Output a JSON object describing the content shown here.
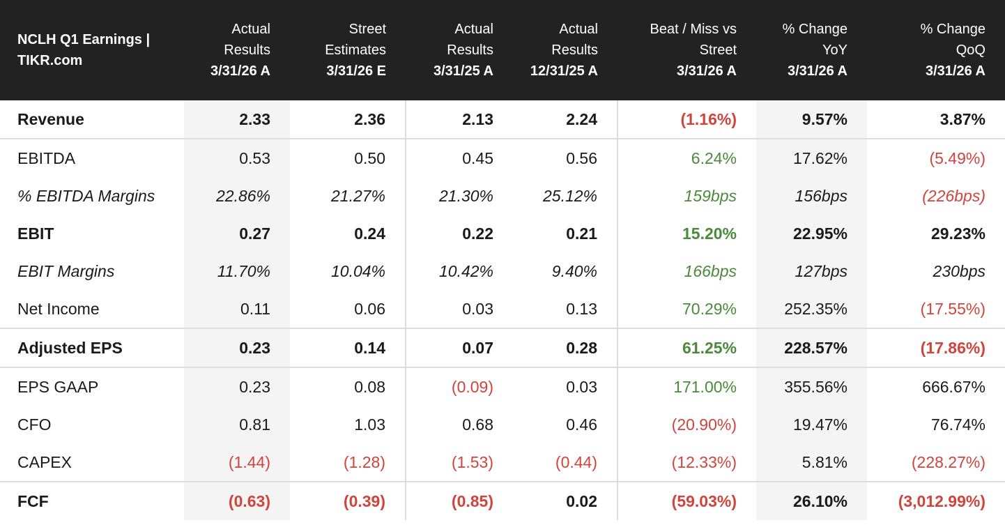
{
  "chart_data": {
    "type": "table",
    "title": "NCLH Q1 Earnings | TIKR.com",
    "columns": [
      {
        "line1": "Actual",
        "line2": "Results",
        "date": "3/31/26 A"
      },
      {
        "line1": "Street",
        "line2": "Estimates",
        "date": "3/31/26 E"
      },
      {
        "line1": "Actual",
        "line2": "Results",
        "date": "3/31/25 A"
      },
      {
        "line1": "Actual",
        "line2": "Results",
        "date": "12/31/25 A"
      },
      {
        "line1": "Beat / Miss vs",
        "line2": "Street",
        "date": "3/31/26 A"
      },
      {
        "line1": "% Change",
        "line2": "YoY",
        "date": "3/31/26 A"
      },
      {
        "line1": "% Change",
        "line2": "QoQ",
        "date": "3/31/26 A"
      }
    ],
    "rows": [
      {
        "label": "Revenue",
        "style": "bold",
        "cells": [
          "2.33",
          "2.36",
          "2.13",
          "2.24",
          "(1.16%)",
          "9.57%",
          "3.87%"
        ],
        "colors": [
          "",
          "",
          "",
          "",
          "neg",
          "",
          ""
        ]
      },
      {
        "label": "EBITDA",
        "style": "normal",
        "cells": [
          "0.53",
          "0.50",
          "0.45",
          "0.56",
          "6.24%",
          "17.62%",
          "(5.49%)"
        ],
        "colors": [
          "",
          "",
          "",
          "",
          "pos",
          "",
          "neg"
        ]
      },
      {
        "label": "% EBITDA Margins",
        "style": "italic",
        "cells": [
          "22.86%",
          "21.27%",
          "21.30%",
          "25.12%",
          "159bps",
          "156bps",
          "(226bps)"
        ],
        "colors": [
          "",
          "",
          "",
          "",
          "pos",
          "",
          "neg"
        ]
      },
      {
        "label": "EBIT",
        "style": "bold",
        "cells": [
          "0.27",
          "0.24",
          "0.22",
          "0.21",
          "15.20%",
          "22.95%",
          "29.23%"
        ],
        "colors": [
          "",
          "",
          "",
          "",
          "pos",
          "",
          ""
        ]
      },
      {
        "label": "EBIT Margins",
        "style": "italic",
        "cells": [
          "11.70%",
          "10.04%",
          "10.42%",
          "9.40%",
          "166bps",
          "127bps",
          "230bps"
        ],
        "colors": [
          "",
          "",
          "",
          "",
          "pos",
          "",
          ""
        ]
      },
      {
        "label": "Net Income",
        "style": "normal",
        "cells": [
          "0.11",
          "0.06",
          "0.03",
          "0.13",
          "70.29%",
          "252.35%",
          "(17.55%)"
        ],
        "colors": [
          "",
          "",
          "",
          "",
          "pos",
          "",
          "neg"
        ]
      },
      {
        "label": "Adjusted EPS",
        "style": "bold",
        "cells": [
          "0.23",
          "0.14",
          "0.07",
          "0.28",
          "61.25%",
          "228.57%",
          "(17.86%)"
        ],
        "colors": [
          "",
          "",
          "",
          "",
          "pos",
          "",
          "neg"
        ]
      },
      {
        "label": "EPS GAAP",
        "style": "normal",
        "cells": [
          "0.23",
          "0.08",
          "(0.09)",
          "0.03",
          "171.00%",
          "355.56%",
          "666.67%"
        ],
        "colors": [
          "",
          "",
          "neg",
          "",
          "pos",
          "",
          ""
        ]
      },
      {
        "label": "CFO",
        "style": "normal",
        "cells": [
          "0.81",
          "1.03",
          "0.68",
          "0.46",
          "(20.90%)",
          "19.47%",
          "76.74%"
        ],
        "colors": [
          "",
          "",
          "",
          "",
          "neg",
          "",
          ""
        ]
      },
      {
        "label": "CAPEX",
        "style": "normal",
        "cells": [
          "(1.44)",
          "(1.28)",
          "(1.53)",
          "(0.44)",
          "(12.33%)",
          "5.81%",
          "(228.27%)"
        ],
        "colors": [
          "neg",
          "neg",
          "neg",
          "neg",
          "neg",
          "",
          "neg"
        ]
      },
      {
        "label": "FCF",
        "style": "bold",
        "cells": [
          "(0.63)",
          "(0.39)",
          "(0.85)",
          "0.02",
          "(59.03%)",
          "26.10%",
          "(3,012.99%)"
        ],
        "colors": [
          "neg",
          "neg",
          "neg",
          "",
          "neg",
          "",
          "neg"
        ]
      }
    ],
    "colors": {
      "header_bg": "#222222",
      "negative": "#d0443c",
      "positive": "#4a8a3a",
      "shade": "#f4f4f4"
    }
  }
}
